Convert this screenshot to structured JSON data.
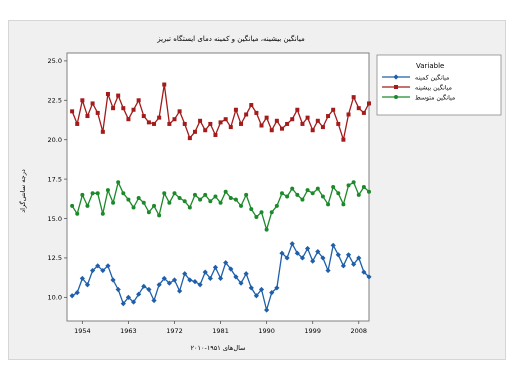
{
  "chart_data": {
    "type": "line",
    "title": "میانگین بیشینه، میانگین و کمینه دمای ایستگاه تبریز",
    "xlabel": "سال‌های ۱۹۵۱-۲۰۱۰",
    "ylabel": "درجه سانتی‌گراد",
    "xlim": [
      1951,
      2010
    ],
    "ylim": [
      8.5,
      25.5
    ],
    "x_ticks": [
      "1954",
      "1963",
      "1972",
      "1981",
      "1990",
      "1999",
      "2008"
    ],
    "y_ticks": [
      "25.0",
      "22.5",
      "20.0",
      "17.5",
      "15.0",
      "12.5",
      "10.0"
    ],
    "grid": false,
    "legend": {
      "title": "Variable",
      "position": "right",
      "entries": [
        "میانگین کمینه",
        "میانگین بیشینه",
        "میانگین متوسط"
      ]
    },
    "series": [
      {
        "name": "میانگین کمینه",
        "color": "#1f5faa",
        "marker": "diamond",
        "values": [
          [
            1952,
            10.1
          ],
          [
            1953,
            10.3
          ],
          [
            1954,
            11.2
          ],
          [
            1955,
            10.8
          ],
          [
            1956,
            11.7
          ],
          [
            1957,
            12.0
          ],
          [
            1958,
            11.7
          ],
          [
            1959,
            12.0
          ],
          [
            1960,
            11.1
          ],
          [
            1961,
            10.5
          ],
          [
            1962,
            9.6
          ],
          [
            1963,
            10.0
          ],
          [
            1964,
            9.7
          ],
          [
            1965,
            10.2
          ],
          [
            1966,
            10.7
          ],
          [
            1967,
            10.5
          ],
          [
            1968,
            9.8
          ],
          [
            1969,
            10.8
          ],
          [
            1970,
            11.2
          ],
          [
            1971,
            10.9
          ],
          [
            1972,
            11.1
          ],
          [
            1973,
            10.4
          ],
          [
            1974,
            11.5
          ],
          [
            1975,
            11.1
          ],
          [
            1976,
            11.0
          ],
          [
            1977,
            10.8
          ],
          [
            1978,
            11.6
          ],
          [
            1979,
            11.2
          ],
          [
            1980,
            11.9
          ],
          [
            1981,
            11.2
          ],
          [
            1982,
            12.2
          ],
          [
            1983,
            11.8
          ],
          [
            1984,
            11.3
          ],
          [
            1985,
            10.9
          ],
          [
            1986,
            11.5
          ],
          [
            1987,
            10.6
          ],
          [
            1988,
            10.1
          ],
          [
            1989,
            10.5
          ],
          [
            1990,
            9.2
          ],
          [
            1991,
            10.3
          ],
          [
            1992,
            10.6
          ],
          [
            1993,
            12.8
          ],
          [
            1994,
            12.5
          ],
          [
            1995,
            13.4
          ],
          [
            1996,
            12.8
          ],
          [
            1997,
            12.5
          ],
          [
            1998,
            13.1
          ],
          [
            1999,
            12.3
          ],
          [
            2000,
            12.9
          ],
          [
            2001,
            12.5
          ],
          [
            2002,
            11.7
          ],
          [
            2003,
            13.3
          ],
          [
            2004,
            12.7
          ],
          [
            2005,
            12.0
          ],
          [
            2006,
            12.7
          ],
          [
            2007,
            12.1
          ],
          [
            2008,
            12.5
          ],
          [
            2009,
            11.6
          ],
          [
            2010,
            11.3
          ]
        ]
      },
      {
        "name": "میانگین بیشینه",
        "color": "#a31b1b",
        "marker": "square",
        "values": [
          [
            1952,
            21.8
          ],
          [
            1953,
            21.0
          ],
          [
            1954,
            22.5
          ],
          [
            1955,
            21.5
          ],
          [
            1956,
            22.3
          ],
          [
            1957,
            21.7
          ],
          [
            1958,
            20.5
          ],
          [
            1959,
            22.9
          ],
          [
            1960,
            22.0
          ],
          [
            1961,
            22.8
          ],
          [
            1962,
            22.0
          ],
          [
            1963,
            21.3
          ],
          [
            1964,
            21.9
          ],
          [
            1965,
            22.5
          ],
          [
            1966,
            21.5
          ],
          [
            1967,
            21.1
          ],
          [
            1968,
            21.0
          ],
          [
            1969,
            21.4
          ],
          [
            1970,
            23.5
          ],
          [
            1971,
            21.0
          ],
          [
            1972,
            21.3
          ],
          [
            1973,
            21.8
          ],
          [
            1974,
            21.0
          ],
          [
            1975,
            20.1
          ],
          [
            1976,
            20.5
          ],
          [
            1977,
            21.2
          ],
          [
            1978,
            20.6
          ],
          [
            1979,
            21.0
          ],
          [
            1980,
            20.3
          ],
          [
            1981,
            21.1
          ],
          [
            1982,
            21.3
          ],
          [
            1983,
            20.8
          ],
          [
            1984,
            21.9
          ],
          [
            1985,
            21.0
          ],
          [
            1986,
            21.6
          ],
          [
            1987,
            22.2
          ],
          [
            1988,
            21.7
          ],
          [
            1989,
            20.9
          ],
          [
            1990,
            21.4
          ],
          [
            1991,
            20.6
          ],
          [
            1992,
            21.2
          ],
          [
            1993,
            20.7
          ],
          [
            1994,
            21.0
          ],
          [
            1995,
            21.3
          ],
          [
            1996,
            21.9
          ],
          [
            1997,
            21.0
          ],
          [
            1998,
            21.4
          ],
          [
            1999,
            20.6
          ],
          [
            2000,
            21.2
          ],
          [
            2001,
            20.8
          ],
          [
            2002,
            21.5
          ],
          [
            2003,
            21.9
          ],
          [
            2004,
            21.0
          ],
          [
            2005,
            20.0
          ],
          [
            2006,
            21.6
          ],
          [
            2007,
            22.7
          ],
          [
            2008,
            22.0
          ],
          [
            2009,
            21.7
          ],
          [
            2010,
            22.3
          ]
        ]
      },
      {
        "name": "میانگین متوسط",
        "color": "#1c8a2a",
        "marker": "circle",
        "values": [
          [
            1952,
            15.8
          ],
          [
            1953,
            15.3
          ],
          [
            1954,
            16.5
          ],
          [
            1955,
            15.8
          ],
          [
            1956,
            16.6
          ],
          [
            1957,
            16.6
          ],
          [
            1958,
            15.3
          ],
          [
            1959,
            16.8
          ],
          [
            1960,
            16.0
          ],
          [
            1961,
            17.3
          ],
          [
            1962,
            16.6
          ],
          [
            1963,
            16.2
          ],
          [
            1964,
            15.7
          ],
          [
            1965,
            16.3
          ],
          [
            1966,
            16.0
          ],
          [
            1967,
            15.4
          ],
          [
            1968,
            15.8
          ],
          [
            1969,
            15.2
          ],
          [
            1970,
            16.6
          ],
          [
            1971,
            16.0
          ],
          [
            1972,
            16.6
          ],
          [
            1973,
            16.3
          ],
          [
            1974,
            16.1
          ],
          [
            1975,
            15.7
          ],
          [
            1976,
            16.5
          ],
          [
            1977,
            16.2
          ],
          [
            1978,
            16.5
          ],
          [
            1979,
            16.1
          ],
          [
            1980,
            16.4
          ],
          [
            1981,
            16.0
          ],
          [
            1982,
            16.7
          ],
          [
            1983,
            16.3
          ],
          [
            1984,
            16.2
          ],
          [
            1985,
            15.8
          ],
          [
            1986,
            16.5
          ],
          [
            1987,
            15.6
          ],
          [
            1988,
            15.1
          ],
          [
            1989,
            15.4
          ],
          [
            1990,
            14.3
          ],
          [
            1991,
            15.4
          ],
          [
            1992,
            15.8
          ],
          [
            1993,
            16.6
          ],
          [
            1994,
            16.4
          ],
          [
            1995,
            16.9
          ],
          [
            1996,
            16.5
          ],
          [
            1997,
            16.2
          ],
          [
            1998,
            16.8
          ],
          [
            1999,
            16.6
          ],
          [
            2000,
            16.9
          ],
          [
            2001,
            16.4
          ],
          [
            2002,
            15.9
          ],
          [
            2003,
            17.0
          ],
          [
            2004,
            16.6
          ],
          [
            2005,
            15.9
          ],
          [
            2006,
            17.1
          ],
          [
            2007,
            17.3
          ],
          [
            2008,
            16.5
          ],
          [
            2009,
            17.0
          ],
          [
            2010,
            16.7
          ]
        ]
      }
    ]
  }
}
